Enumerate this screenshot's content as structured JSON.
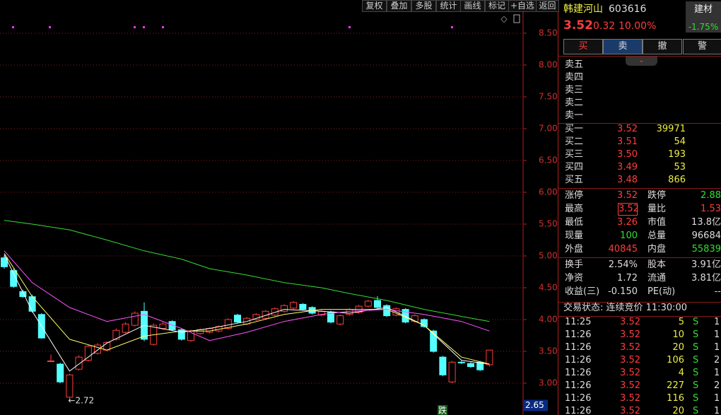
{
  "toolbar": [
    "复权",
    "叠加",
    "多股",
    "统计",
    "画线",
    "标记",
    "+自选",
    "返回"
  ],
  "chart_data": {
    "type": "candlestick",
    "open": [
      4.97,
      4.77,
      4.44,
      4.36,
      4.08,
      3.34,
      3.3,
      2.78,
      3.22,
      3.36,
      3.47,
      3.52,
      3.69,
      3.8,
      3.91,
      4.13,
      3.61,
      3.86,
      3.97,
      3.84,
      3.67,
      3.78,
      3.8,
      3.82,
      3.86,
      4.07,
      3.93,
      4.0,
      4.02,
      4.07,
      4.13,
      4.18,
      4.24,
      4.19,
      4.07,
      4.12,
      3.93,
      4.08,
      4.11,
      4.21,
      4.3,
      4.22,
      4.07,
      4.16,
      3.97,
      4.0,
      3.82,
      3.41,
      3.02,
      3.33,
      3.31,
      3.33,
      3.29
    ],
    "high": [
      5.0,
      4.8,
      4.47,
      4.39,
      4.1,
      3.45,
      3.32,
      3.15,
      3.44,
      3.6,
      3.63,
      3.66,
      3.86,
      3.96,
      4.13,
      4.27,
      3.94,
      3.96,
      3.99,
      3.86,
      3.84,
      3.86,
      3.88,
      3.91,
      4.02,
      4.09,
      4.04,
      4.1,
      4.15,
      4.19,
      4.24,
      4.29,
      4.26,
      4.21,
      4.15,
      4.14,
      4.08,
      4.18,
      4.23,
      4.31,
      4.37,
      4.24,
      4.19,
      4.18,
      4.08,
      4.02,
      3.84,
      3.43,
      3.35,
      3.35,
      3.33,
      3.35,
      3.52
    ],
    "low": [
      4.8,
      4.5,
      4.34,
      4.11,
      3.7,
      3.33,
      3.0,
      2.72,
      3.2,
      3.34,
      3.45,
      3.5,
      3.67,
      3.78,
      3.89,
      3.66,
      3.59,
      3.84,
      3.82,
      3.67,
      3.65,
      3.76,
      3.78,
      3.8,
      3.84,
      3.94,
      3.91,
      3.98,
      4.0,
      4.05,
      4.11,
      4.16,
      4.14,
      4.08,
      4.05,
      3.94,
      3.91,
      4.06,
      4.09,
      4.19,
      4.17,
      4.04,
      4.05,
      3.94,
      3.95,
      3.87,
      3.48,
      3.11,
      3.0,
      3.3,
      3.24,
      3.19,
      3.26
    ],
    "close": [
      4.83,
      4.52,
      4.36,
      4.13,
      3.71,
      3.35,
      3.02,
      3.13,
      3.41,
      3.58,
      3.6,
      3.64,
      3.83,
      3.93,
      4.1,
      3.69,
      3.91,
      3.93,
      3.84,
      3.69,
      3.82,
      3.84,
      3.86,
      3.89,
      4.0,
      3.96,
      4.02,
      4.08,
      4.13,
      4.17,
      4.22,
      4.27,
      4.16,
      4.1,
      4.13,
      3.96,
      4.06,
      4.16,
      4.21,
      4.29,
      4.19,
      4.06,
      4.17,
      3.96,
      4.06,
      3.89,
      3.5,
      3.13,
      3.33,
      3.32,
      3.26,
      3.21,
      3.52
    ],
    "ma": [
      {
        "color": "#ffffff",
        "x": [
          0,
          3,
          7,
          11,
          15,
          19,
          22,
          26,
          30,
          34,
          37,
          41,
          45,
          49,
          52
        ],
        "values": [
          5.02,
          4.13,
          3.19,
          3.63,
          3.91,
          3.8,
          3.86,
          3.97,
          4.16,
          4.13,
          4.1,
          4.19,
          3.91,
          3.36,
          3.3
        ]
      },
      {
        "color": "#ffff66",
        "x": [
          0,
          3,
          7,
          11,
          15,
          19,
          22,
          26,
          30,
          34,
          37,
          41,
          45,
          49,
          52
        ],
        "values": [
          5.04,
          4.36,
          3.69,
          3.52,
          3.74,
          3.82,
          3.82,
          3.93,
          4.08,
          4.16,
          4.16,
          4.16,
          3.91,
          3.41,
          3.3
        ]
      },
      {
        "color": "#ff55ff",
        "x": [
          0,
          3,
          7,
          11,
          15,
          19,
          22,
          26,
          30,
          34,
          37,
          41,
          45,
          49,
          52
        ],
        "values": [
          5.08,
          4.58,
          4.19,
          3.97,
          4.08,
          3.86,
          3.67,
          3.8,
          3.97,
          4.08,
          4.13,
          4.16,
          4.08,
          3.97,
          3.82
        ]
      },
      {
        "color": "#33dd33",
        "x": [
          0,
          3,
          7,
          11,
          15,
          19,
          22,
          26,
          30,
          34,
          37,
          41,
          45,
          49,
          52
        ],
        "values": [
          5.56,
          5.5,
          5.41,
          5.25,
          5.08,
          4.95,
          4.8,
          4.7,
          4.58,
          4.5,
          4.41,
          4.3,
          4.16,
          4.05,
          3.97
        ]
      }
    ],
    "ylim": [
      2.5,
      9.0
    ],
    "yticks": [
      {
        "value": 8.5,
        "label": "8.50"
      },
      {
        "value": 8,
        "label": "8.00"
      },
      {
        "value": 7.5,
        "label": "7.50"
      },
      {
        "value": 7,
        "label": "7.00"
      },
      {
        "value": 6.5,
        "label": "6.50"
      },
      {
        "value": 6,
        "label": "6.00"
      },
      {
        "value": 5.5,
        "label": "5.50"
      },
      {
        "value": 5,
        "label": "5.00"
      },
      {
        "value": 4.5,
        "label": "4.50"
      },
      {
        "value": 4,
        "label": "4.00"
      },
      {
        "value": 3.5,
        "label": "3.50"
      },
      {
        "value": 3,
        "label": "3.00"
      }
    ],
    "grid": true,
    "low_annotation": "←2.72",
    "cursor_price": 2.65,
    "signal": "跌"
  },
  "quote": {
    "name": "韩建河山",
    "code": "603616",
    "sector": "建材",
    "sector_change": "-1.75%",
    "price": "3.52",
    "change": "0.32",
    "change_pct": "10.00%",
    "buttons": [
      "买",
      "卖",
      "撤",
      "警"
    ],
    "asks": [
      "卖五",
      "卖四",
      "卖三",
      "卖二",
      "卖一"
    ],
    "bids": [
      [
        "买一",
        "3.52",
        "39971"
      ],
      [
        "买二",
        "3.51",
        "54"
      ],
      [
        "买三",
        "3.50",
        "193"
      ],
      [
        "买四",
        "3.49",
        "53"
      ],
      [
        "买五",
        "3.48",
        "866"
      ]
    ],
    "stats": [
      [
        "涨停",
        "3.52",
        "跌停",
        "2.88"
      ],
      [
        "最高",
        "3.52",
        "量比",
        "1.53"
      ],
      [
        "最低",
        "3.26",
        "市值",
        "13.8亿"
      ],
      [
        "现量",
        "100",
        "总量",
        "96684"
      ],
      [
        "外盘",
        "40845",
        "内盘",
        "55839"
      ],
      [
        "换手",
        "2.54%",
        "股本",
        "3.91亿"
      ],
      [
        "净资",
        "1.72",
        "流通",
        "3.81亿"
      ],
      [
        "收益(三)",
        "-0.150",
        "PE(动)",
        "--"
      ]
    ],
    "status": "交易状态: 连续竞价 11:30:00",
    "trades": [
      [
        "11:25",
        "3.52",
        "5",
        "S",
        "1"
      ],
      [
        "11:26",
        "3.52",
        "10",
        "S",
        "1"
      ],
      [
        "11:26",
        "3.52",
        "20",
        "S",
        "1"
      ],
      [
        "11:26",
        "3.52",
        "106",
        "S",
        "2"
      ],
      [
        "11:26",
        "3.52",
        "4",
        "S",
        "1"
      ],
      [
        "11:26",
        "3.52",
        "227",
        "S",
        "2"
      ],
      [
        "11:26",
        "3.52",
        "116",
        "S",
        "1"
      ],
      [
        "11:26",
        "3.52",
        "20",
        "S",
        "1"
      ]
    ]
  }
}
